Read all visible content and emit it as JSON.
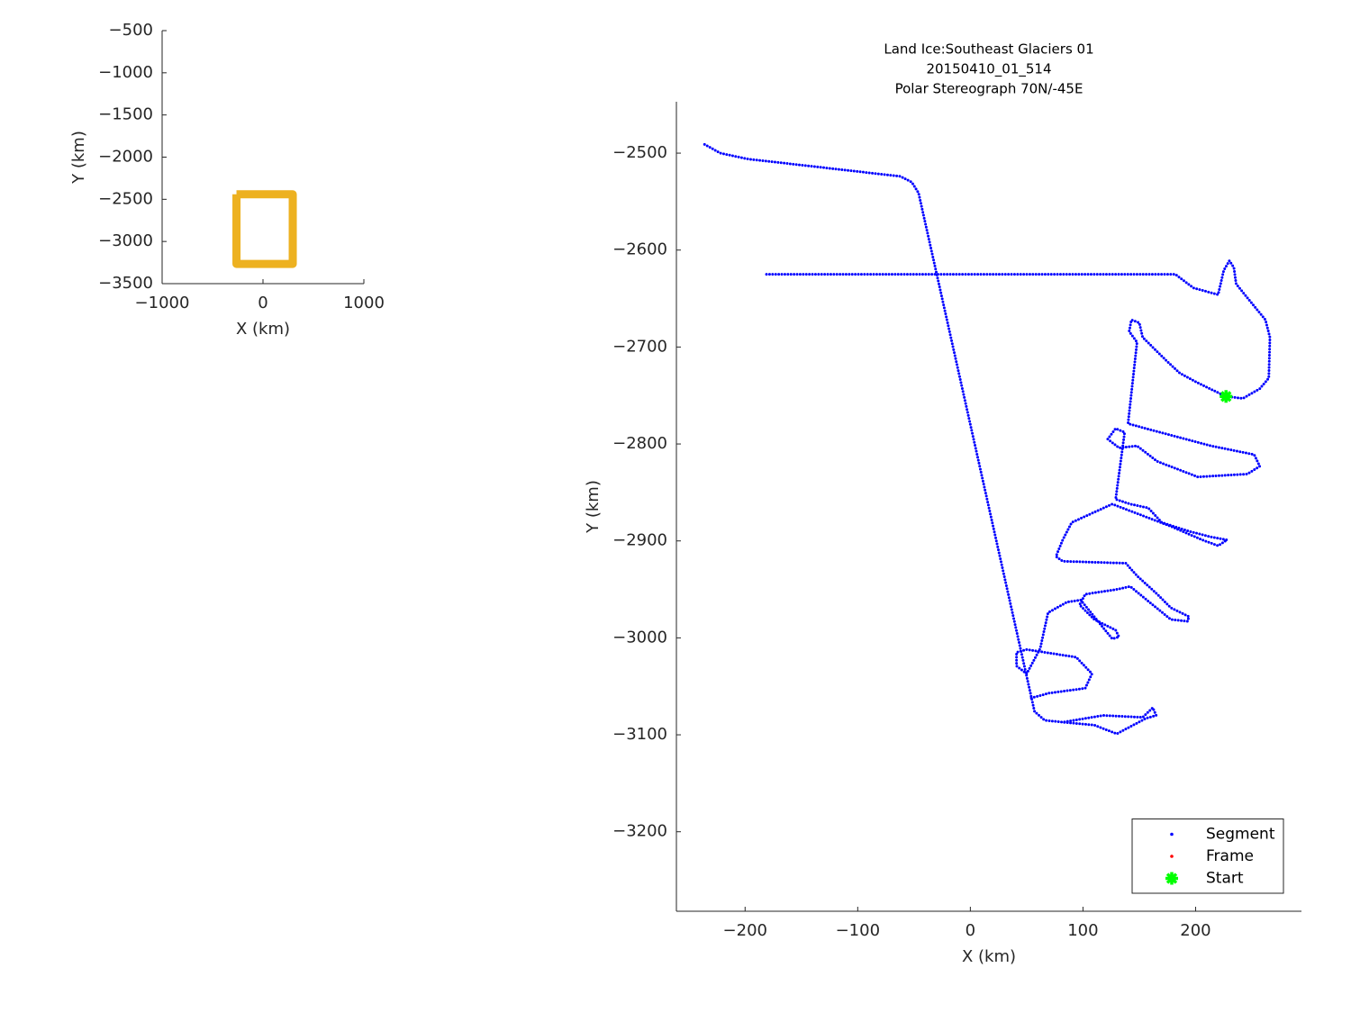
{
  "chart_data": [
    {
      "type": "line",
      "xlabel": "X (km)",
      "ylabel": "Y (km)",
      "xlim": [
        -1000,
        1000
      ],
      "xticks": [
        {
          "value": -1000,
          "label": "−1000"
        },
        0,
        1000
      ],
      "ylim": [
        -3500,
        -500
      ],
      "yticks": [
        {
          "value": -500,
          "label": "−500"
        },
        {
          "value": -1000,
          "label": "−1000"
        },
        {
          "value": -1500,
          "label": "−1500"
        },
        {
          "value": -2000,
          "label": "−2000"
        },
        {
          "value": -2500,
          "label": "−2500"
        },
        {
          "value": -3000,
          "label": "−3000"
        },
        {
          "value": -3500,
          "label": "−3500"
        }
      ],
      "series": [
        {
          "color": "#edb120",
          "linewidth": 9,
          "linestyle": "solid",
          "x": [
            -263,
            295,
            295,
            -263,
            -263
          ],
          "y": [
            -2441,
            -2441,
            -3266,
            -3266,
            -2441
          ]
        }
      ]
    },
    {
      "type": "line",
      "title": [
        "Land Ice:Southeast Glaciers 01",
        "20150410_01_514",
        "Polar Stereograph 70N/-45E"
      ],
      "xlabel": "X (km)",
      "ylabel": "Y (km)",
      "xlim": [
        -261,
        294
      ],
      "xticks": [
        {
          "value": -200,
          "label": "−200"
        },
        {
          "value": -100,
          "label": "−100"
        },
        0,
        100,
        200
      ],
      "ylim": [
        -3282,
        -2447
      ],
      "yticks": [
        {
          "value": -2500,
          "label": "−2500"
        },
        {
          "value": -2600,
          "label": "−2600"
        },
        {
          "value": -2700,
          "label": "−2700"
        },
        {
          "value": -2800,
          "label": "−2800"
        },
        {
          "value": -2900,
          "label": "−2900"
        },
        {
          "value": -3000,
          "label": "−3000"
        },
        {
          "value": -3100,
          "label": "−3100"
        },
        {
          "value": -3200,
          "label": "−3200"
        }
      ],
      "legend": "southeast",
      "series": [
        {
          "name": "Segment",
          "color": "#0000ff",
          "linestyle": "dotted",
          "marker": "dot",
          "x": [
            -236,
            -222,
            -198,
            -62,
            -52,
            -46,
            57,
            66,
            82,
            118,
            153,
            162,
            165,
            156,
            130,
            110,
            82,
            null,
            -181,
            182,
            198,
            220,
            225,
            230,
            234,
            236,
            262,
            266,
            265,
            257,
            242,
            227,
            202,
            186,
            174,
            153,
            150,
            143,
            141,
            148,
            140,
            162,
            214,
            252,
            257,
            246,
            202,
            166,
            148,
            132,
            122,
            129,
            137,
            129,
            142,
            158,
            170,
            194,
            214,
            228,
            220,
            206,
            178,
            126,
            90,
            82,
            76,
            82,
            138,
            148,
            166,
            178,
            194,
            193,
            178,
            162,
            142,
            130,
            102,
            97,
            110,
            129,
            132,
            126,
            98,
            86,
            69,
            62,
            50,
            41,
            41,
            50,
            94,
            108,
            102,
            70,
            54
          ],
          "y": [
            -2491,
            -2500,
            -2506,
            -2524,
            -2530,
            -2541,
            -3076,
            -3085,
            -3087,
            -3080,
            -3082,
            -3072,
            -3080,
            -3083,
            -3099,
            -3090,
            -3087,
            null,
            -2625,
            -2625,
            -2639,
            -2646,
            -2621,
            -2611,
            -2618,
            -2635,
            -2672,
            -2690,
            -2732,
            -2743,
            -2753,
            -2751,
            -2737,
            -2727,
            -2714,
            -2690,
            -2675,
            -2672,
            -2684,
            -2695,
            -2779,
            -2786,
            -2802,
            -2811,
            -2823,
            -2831,
            -2834,
            -2818,
            -2802,
            -2804,
            -2795,
            -2784,
            -2788,
            -2857,
            -2862,
            -2866,
            -2881,
            -2890,
            -2896,
            -2899,
            -2905,
            -2899,
            -2885,
            -2862,
            -2881,
            -2899,
            -2916,
            -2921,
            -2923,
            -2936,
            -2955,
            -2969,
            -2978,
            -2983,
            -2981,
            -2966,
            -2947,
            -2950,
            -2955,
            -2966,
            -2981,
            -2992,
            -2999,
            -3001,
            -2961,
            -2963,
            -2974,
            -3011,
            -3037,
            -3029,
            -3015,
            -3012,
            -3020,
            -3037,
            -3052,
            -3057,
            -3062
          ]
        },
        {
          "name": "Frame",
          "color": "#ff0000",
          "linestyle": "none",
          "marker": "dot",
          "x": [],
          "y": []
        },
        {
          "name": "Start",
          "color": "#00ff00",
          "linestyle": "none",
          "marker": "asterisk",
          "x": [
            227
          ],
          "y": [
            -2751
          ]
        }
      ]
    }
  ]
}
